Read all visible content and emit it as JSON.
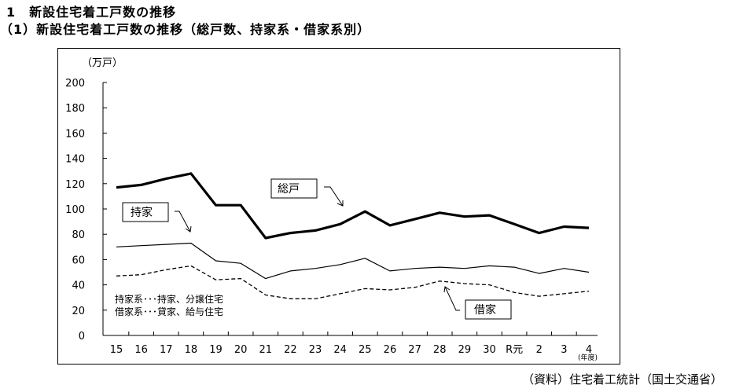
{
  "header": {
    "title": "1　新設住宅着工戸数の推移",
    "subtitle": "（1）新設住宅着工戸数の推移（総戸数、持家系・借家系別）"
  },
  "source": "（資料）住宅着工統計（国土交通省）",
  "chart_data": {
    "type": "line",
    "y_unit": "（万戸）",
    "x_unit": "(年度)",
    "ylim": [
      0,
      200
    ],
    "yticks": [
      0,
      20,
      40,
      60,
      80,
      100,
      120,
      140,
      160,
      180,
      200
    ],
    "categories": [
      "15",
      "16",
      "17",
      "18",
      "19",
      "20",
      "21",
      "22",
      "23",
      "24",
      "25",
      "26",
      "27",
      "28",
      "29",
      "30",
      "R元",
      "2",
      "3",
      "4"
    ],
    "grid": false,
    "series": [
      {
        "name": "総戸",
        "style": "thick-solid",
        "values": [
          117,
          119,
          124,
          128,
          103,
          103,
          77,
          81,
          83,
          88,
          98,
          87,
          92,
          97,
          94,
          95,
          88,
          81,
          86,
          85
        ]
      },
      {
        "name": "持家",
        "style": "thin-solid",
        "values": [
          70,
          71,
          72,
          73,
          59,
          57,
          45,
          51,
          53,
          56,
          61,
          51,
          53,
          54,
          53,
          55,
          54,
          49,
          53,
          50
        ]
      },
      {
        "name": "借家",
        "style": "dashed",
        "values": [
          47,
          48,
          52,
          55,
          44,
          45,
          32,
          29,
          29,
          33,
          37,
          36,
          38,
          43,
          41,
          40,
          34,
          31,
          33,
          35
        ]
      }
    ],
    "annotations": {
      "note_line1": "持家系･･･持家、分譲住宅",
      "note_line2": "借家系･･･貸家、給与住宅"
    },
    "colors": {
      "line": "#000000",
      "background": "#ffffff"
    }
  }
}
